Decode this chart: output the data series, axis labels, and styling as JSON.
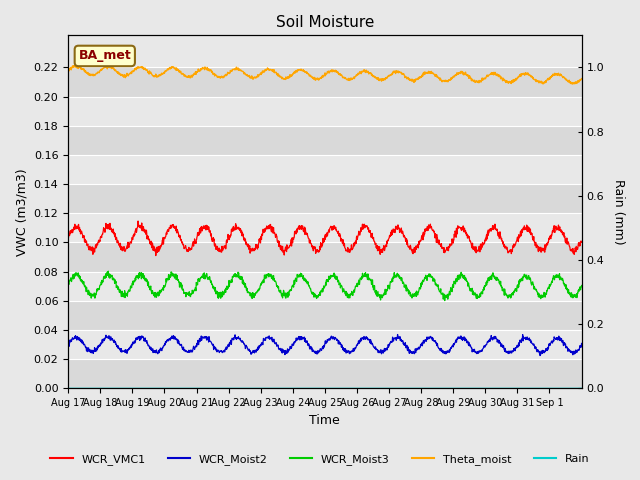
{
  "title": "Soil Moisture",
  "xlabel": "Time",
  "ylabel_left": "VWC (m3/m3)",
  "ylabel_right": "Rain (mm)",
  "annotation": "BA_met",
  "ylim_left": [
    0.0,
    0.242
  ],
  "ylim_right": [
    0.0,
    1.1
  ],
  "yticks_left": [
    0.0,
    0.02,
    0.04,
    0.06,
    0.08,
    0.1,
    0.12,
    0.14,
    0.16,
    0.18,
    0.2,
    0.22
  ],
  "yticks_right": [
    0.0,
    0.2,
    0.4,
    0.6,
    0.8,
    1.0
  ],
  "x_labels": [
    "Aug 17",
    "Aug 18",
    "Aug 19",
    "Aug 20",
    "Aug 21",
    "Aug 22",
    "Aug 23",
    "Aug 24",
    "Aug 25",
    "Aug 26",
    "Aug 27",
    "Aug 28",
    "Aug 29",
    "Aug 30",
    "Aug 31",
    "Sep 1"
  ],
  "series": {
    "WCR_VMC1": {
      "color": "#ff0000",
      "mean": 0.103,
      "amplitude": 0.008
    },
    "WCR_Moist2": {
      "color": "#0000cc",
      "mean": 0.03,
      "amplitude": 0.005
    },
    "WCR_Moist3": {
      "color": "#00cc00",
      "mean": 0.071,
      "amplitude": 0.007
    },
    "Theta_moist": {
      "color": "#ffa500",
      "mean": 0.218,
      "amplitude": 0.003
    },
    "Rain": {
      "color": "#00cccc",
      "mean": 0.0,
      "amplitude": 0.0
    }
  },
  "bg_color": "#e8e8e8",
  "grid_color": "#ffffff"
}
